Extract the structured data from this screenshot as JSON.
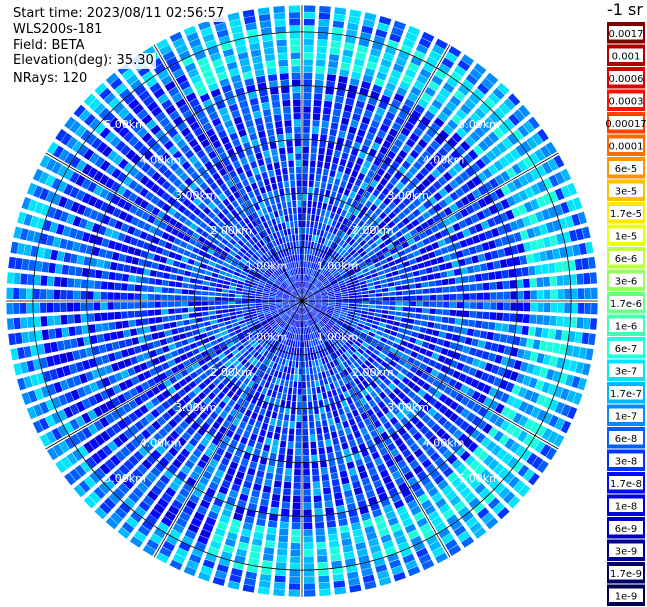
{
  "info": {
    "start_time": "Start time: 2023/08/11 02:56:57",
    "device": "WLS200s-181",
    "field": "Field: BETA",
    "elevation": "Elevation(deg): 35.30",
    "nrays": "NRays: 120"
  },
  "colorbar": {
    "unit": "-1 sr",
    "labels": [
      "0.0017",
      "0.001",
      "0.0006",
      "0.0003",
      "0.00017",
      "0.0001",
      "6e-5",
      "3e-5",
      "1.7e-5",
      "1e-5",
      "6e-6",
      "3e-6",
      "1.7e-6",
      "1e-6",
      "6e-7",
      "3e-7",
      "1.7e-7",
      "1e-7",
      "6e-8",
      "3e-8",
      "1.7e-8",
      "1e-8",
      "6e-9",
      "3e-9",
      "1.7e-9",
      "1e-9"
    ],
    "colors": [
      "#800000",
      "#b00000",
      "#d80000",
      "#ff1000",
      "#ff4000",
      "#ff6a00",
      "#ff9400",
      "#ffbe00",
      "#ffe800",
      "#e9ff0e",
      "#c0ff37",
      "#96ff61",
      "#6dff8a",
      "#43ffb4",
      "#1affdd",
      "#00e4ff",
      "#00b8ff",
      "#008cff",
      "#0060ff",
      "#0034ff",
      "#0008ff",
      "#0000e0",
      "#0000b8",
      "#000090",
      "#000070",
      "#000050"
    ]
  },
  "chart_data": {
    "type": "heatmap",
    "projection": "polar (PPI scan)",
    "rays": 120,
    "range_ring_labels": [
      "1.00km",
      "2.00km",
      "3.00km",
      "4.00km",
      "5.00km"
    ],
    "range_km": [
      0,
      5.5
    ],
    "color_scale": "log",
    "value_range": [
      1e-09,
      0.0017
    ],
    "unit": "-1 sr"
  }
}
